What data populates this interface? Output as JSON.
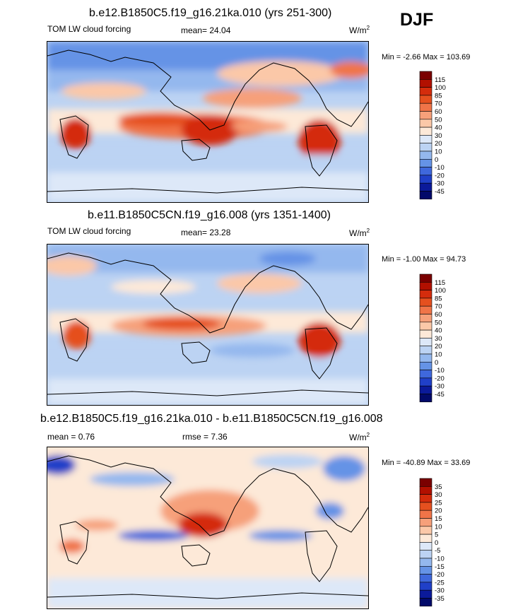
{
  "season": "DJF",
  "panels": [
    {
      "id": "p1",
      "title": "b.e12.B1850C5.f19_g16.21ka.010 (yrs 251-300)",
      "left_label": "TOM LW cloud forcing",
      "center_label": "mean=  24.04",
      "units": "W/m",
      "units_exp": "2",
      "minmax": "Min =  -2.66 Max = 103.69",
      "colorbar": {
        "labels": [
          "115",
          "100",
          "85",
          "70",
          "60",
          "50",
          "40",
          "30",
          "20",
          "10",
          "0",
          "-10",
          "-20",
          "-30",
          "-45"
        ],
        "colors": [
          "#7a0000",
          "#b21000",
          "#d42c0c",
          "#e5501f",
          "#f07448",
          "#f6a07a",
          "#fbc8a8",
          "#fde9d8",
          "#dde8f8",
          "#bcd3f3",
          "#94b8ee",
          "#6593e6",
          "#3f68dc",
          "#2040c8",
          "#0b1a9a",
          "#020a6a"
        ]
      }
    },
    {
      "id": "p2",
      "title": "b.e11.B1850C5CN.f19_g16.008 (yrs 1351-1400)",
      "left_label": "TOM LW cloud forcing",
      "center_label": "mean=  23.28",
      "units": "W/m",
      "units_exp": "2",
      "minmax": "Min =  -1.00 Max =  94.73",
      "colorbar": {
        "labels": [
          "115",
          "100",
          "85",
          "70",
          "60",
          "50",
          "40",
          "30",
          "20",
          "10",
          "0",
          "-10",
          "-20",
          "-30",
          "-45"
        ],
        "colors": [
          "#7a0000",
          "#b21000",
          "#d42c0c",
          "#e5501f",
          "#f07448",
          "#f6a07a",
          "#fbc8a8",
          "#fde9d8",
          "#dde8f8",
          "#bcd3f3",
          "#94b8ee",
          "#6593e6",
          "#3f68dc",
          "#2040c8",
          "#0b1a9a",
          "#020a6a"
        ]
      }
    },
    {
      "id": "p3",
      "title": "b.e12.B1850C5.f19_g16.21ka.010 - b.e11.B1850C5CN.f19_g16.008",
      "left_label": "mean =   0.76",
      "center_label": "rmse =   7.36",
      "units": "W/m",
      "units_exp": "2",
      "minmax": "Min = -40.89 Max =  33.69",
      "colorbar": {
        "labels": [
          "35",
          "30",
          "25",
          "20",
          "15",
          "10",
          "5",
          "0",
          "-5",
          "-10",
          "-15",
          "-20",
          "-25",
          "-30",
          "-35"
        ],
        "colors": [
          "#7a0000",
          "#b21000",
          "#d42c0c",
          "#e5501f",
          "#f07448",
          "#f6a07a",
          "#fbc8a8",
          "#fde9d8",
          "#dde8f8",
          "#bcd3f3",
          "#94b8ee",
          "#6593e6",
          "#3f68dc",
          "#2040c8",
          "#0b1a9a",
          "#020a6a"
        ]
      }
    }
  ],
  "chart_data": [
    {
      "type": "heatmap",
      "title": "b.e12.B1850C5.f19_g16.21ka.010 (yrs 251-300)",
      "variable": "TOM LW cloud forcing",
      "mean": 24.04,
      "min": -2.66,
      "max": 103.69,
      "units": "W/m2",
      "levels": [
        -45,
        -30,
        -20,
        -10,
        0,
        10,
        20,
        30,
        40,
        50,
        60,
        70,
        85,
        100,
        115
      ]
    },
    {
      "type": "heatmap",
      "title": "b.e11.B1850C5CN.f19_g16.008 (yrs 1351-1400)",
      "variable": "TOM LW cloud forcing",
      "mean": 23.28,
      "min": -1.0,
      "max": 94.73,
      "units": "W/m2",
      "levels": [
        -45,
        -30,
        -20,
        -10,
        0,
        10,
        20,
        30,
        40,
        50,
        60,
        70,
        85,
        100,
        115
      ]
    },
    {
      "type": "heatmap",
      "title": "b.e12.B1850C5.f19_g16.21ka.010 - b.e11.B1850C5CN.f19_g16.008",
      "mean": 0.76,
      "rmse": 7.36,
      "min": -40.89,
      "max": 33.69,
      "units": "W/m2",
      "levels": [
        -35,
        -30,
        -25,
        -20,
        -15,
        -10,
        -5,
        0,
        5,
        10,
        15,
        20,
        25,
        30,
        35
      ]
    }
  ]
}
